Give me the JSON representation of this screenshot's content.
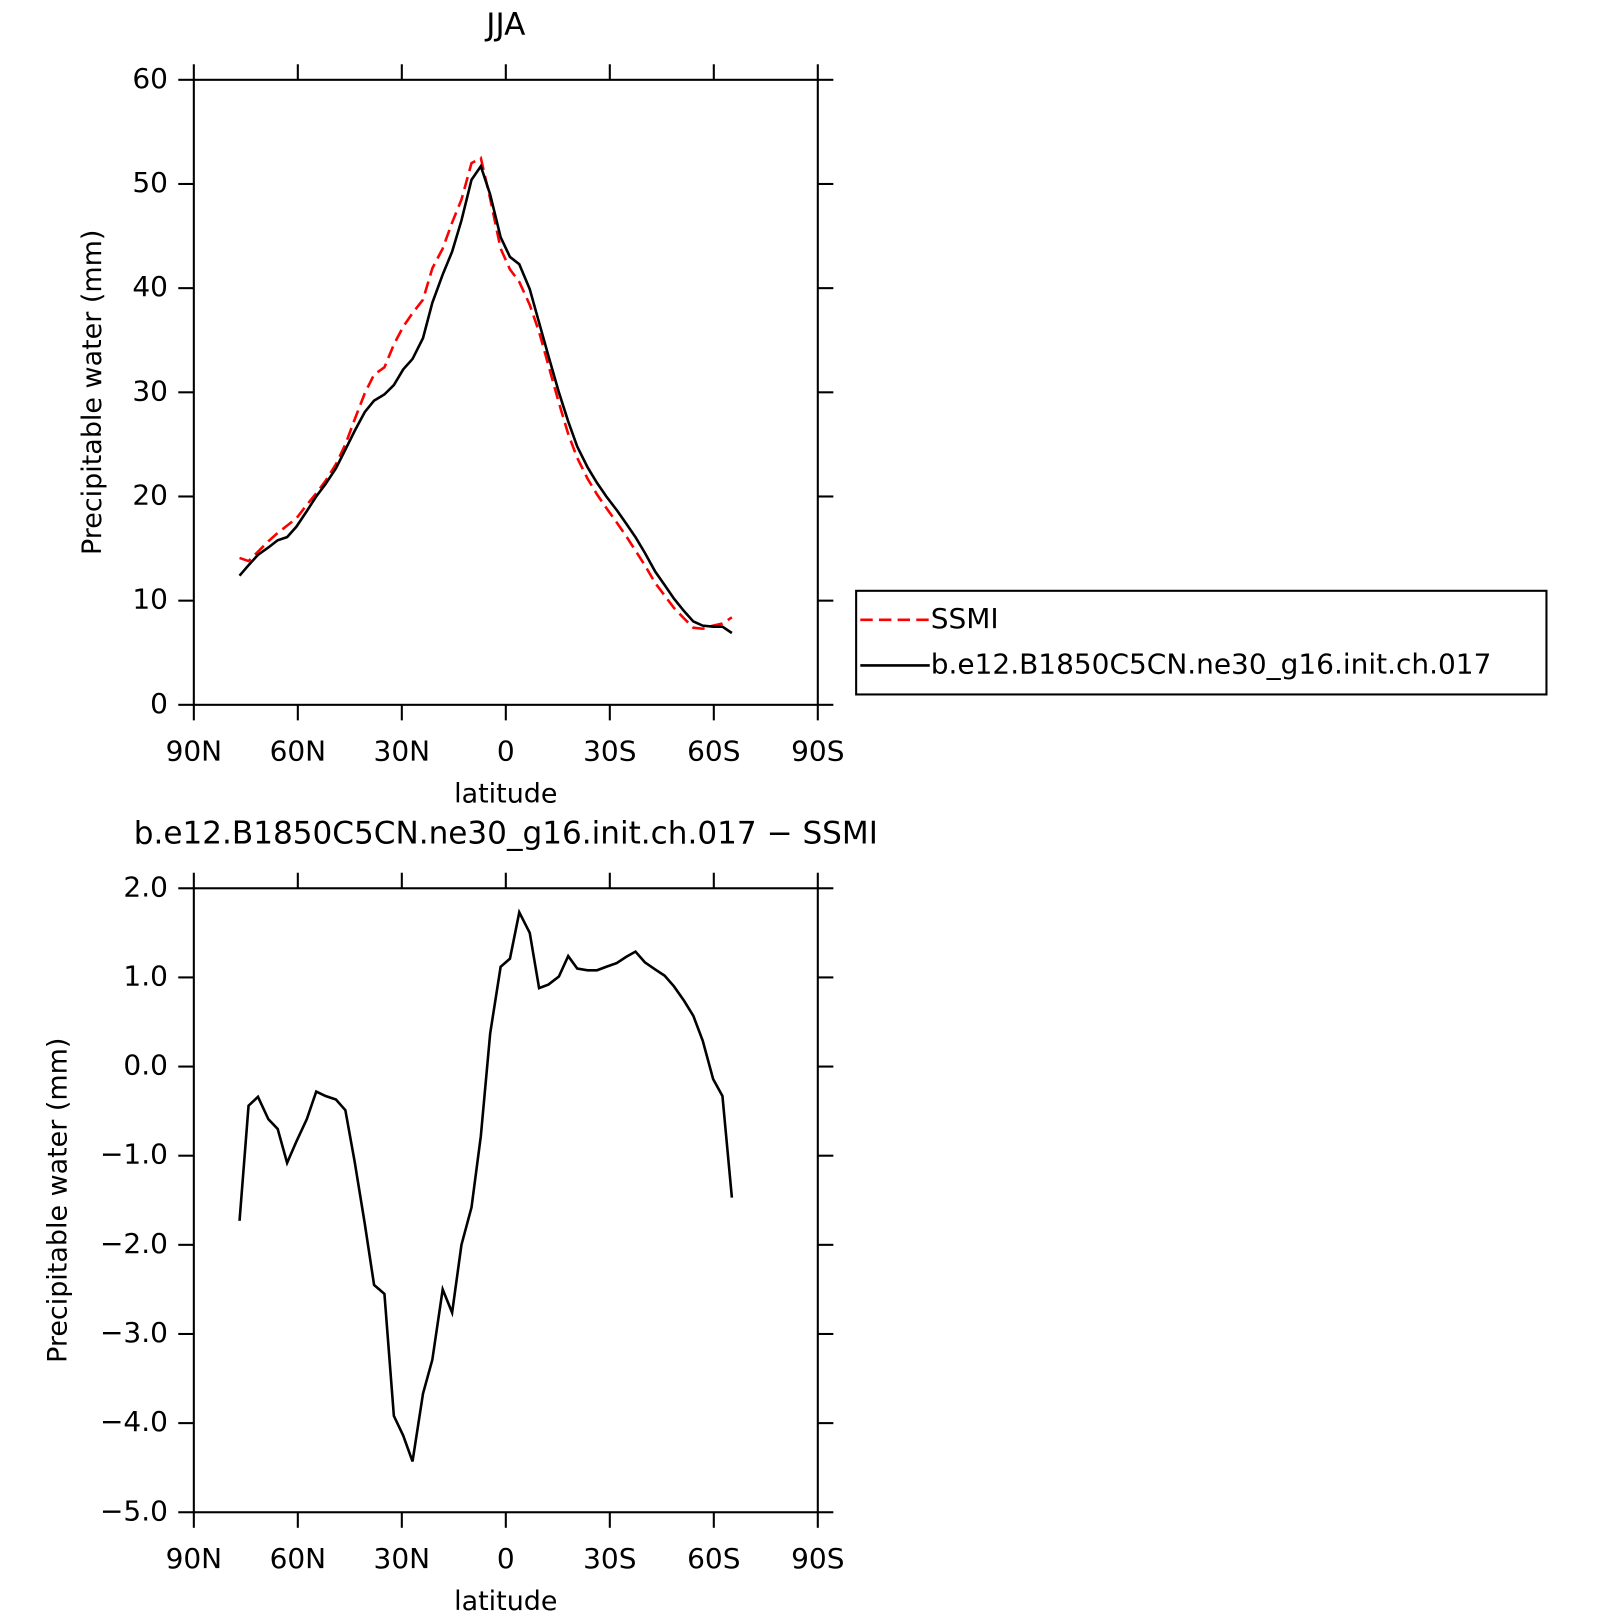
{
  "chart_data": [
    {
      "type": "line",
      "title": "JJA",
      "xlabel": "latitude",
      "ylabel": "Precipitable water (mm)",
      "x": [
        76.8,
        74.2,
        71.5,
        68.5,
        65.8,
        63.1,
        60.4,
        57.4,
        54.7,
        52.0,
        49.0,
        46.3,
        43.6,
        40.7,
        38.0,
        35.0,
        32.3,
        29.6,
        26.9,
        23.9,
        21.2,
        18.2,
        15.5,
        12.8,
        9.9,
        7.2,
        4.5,
        1.5,
        -1.2,
        -3.9,
        -6.9,
        -9.6,
        -12.3,
        -15.3,
        -18.0,
        -20.6,
        -23.6,
        -26.3,
        -29.0,
        -32.0,
        -34.7,
        -37.4,
        -40.1,
        -43.1,
        -45.8,
        -48.5,
        -51.4,
        -54.1,
        -56.8,
        -59.8,
        -62.5,
        -65.2
      ],
      "series": [
        {
          "name": "SSMI",
          "color": "#ff0000",
          "dashed": true,
          "values": [
            14.1,
            13.8,
            14.7,
            15.7,
            16.5,
            17.2,
            17.9,
            19.2,
            20.3,
            21.5,
            23.1,
            25.0,
            27.4,
            29.9,
            31.7,
            32.4,
            34.6,
            36.3,
            37.6,
            38.9,
            41.9,
            43.8,
            46.3,
            48.5,
            52.0,
            52.5,
            48.6,
            43.8,
            41.8,
            40.6,
            38.4,
            35.8,
            32.6,
            29.0,
            26.0,
            23.7,
            21.7,
            20.2,
            18.9,
            17.5,
            16.2,
            14.8,
            13.4,
            11.7,
            10.5,
            9.3,
            8.3,
            7.4,
            7.3,
            7.6,
            7.8,
            8.4
          ]
        },
        {
          "name": "b.e12.B1850C5CN.ne30_g16.init.ch.017",
          "color": "#000000",
          "dashed": false,
          "values": [
            12.4,
            13.4,
            14.4,
            15.1,
            15.8,
            16.1,
            17.1,
            18.6,
            20.0,
            21.2,
            22.7,
            24.5,
            26.3,
            28.1,
            29.2,
            29.8,
            30.7,
            32.2,
            33.2,
            35.2,
            38.6,
            41.3,
            43.5,
            46.5,
            50.4,
            51.7,
            49.0,
            44.9,
            43.0,
            42.3,
            39.9,
            36.7,
            33.5,
            30.0,
            27.2,
            24.8,
            22.8,
            21.3,
            20.0,
            18.7,
            17.4,
            16.1,
            14.6,
            12.8,
            11.5,
            10.2,
            9.0,
            8.0,
            7.6,
            7.5,
            7.5,
            6.9
          ]
        }
      ],
      "xlim": [
        90,
        -90
      ],
      "xticks": [
        {
          "value": 90,
          "label": "90N"
        },
        {
          "value": 60,
          "label": "60N"
        },
        {
          "value": 30,
          "label": "30N"
        },
        0,
        {
          "value": -30,
          "label": "30S"
        },
        {
          "value": -60,
          "label": "60S"
        },
        {
          "value": -90,
          "label": "90S"
        }
      ],
      "ylim": [
        0,
        60
      ],
      "yticks": [
        0,
        10,
        20,
        30,
        40,
        50,
        60
      ],
      "legend": "right"
    },
    {
      "type": "line",
      "title": "b.e12.B1850C5CN.ne30_g16.init.ch.017 − SSMI",
      "xlabel": "latitude",
      "ylabel": "Precipitable water (mm)",
      "x": [
        76.8,
        74.2,
        71.5,
        68.5,
        65.8,
        63.1,
        60.4,
        57.4,
        54.7,
        52.0,
        49.0,
        46.3,
        43.6,
        40.7,
        38.0,
        35.0,
        32.3,
        29.6,
        26.9,
        23.9,
        21.2,
        18.2,
        15.5,
        12.8,
        9.9,
        7.2,
        4.5,
        1.5,
        -1.2,
        -3.9,
        -6.9,
        -9.6,
        -12.3,
        -15.3,
        -18.0,
        -20.6,
        -23.6,
        -26.3,
        -29.0,
        -32.0,
        -34.7,
        -37.4,
        -40.1,
        -43.1,
        -45.8,
        -48.5,
        -51.4,
        -54.1,
        -56.8,
        -59.8,
        -62.5,
        -65.2
      ],
      "values": [
        -1.73,
        -0.44,
        -0.34,
        -0.59,
        -0.7,
        -1.08,
        -0.84,
        -0.59,
        -0.28,
        -0.33,
        -0.37,
        -0.49,
        -1.07,
        -1.76,
        -2.45,
        -2.55,
        -3.92,
        -4.14,
        -4.43,
        -3.67,
        -3.29,
        -2.5,
        -2.76,
        -2.0,
        -1.58,
        -0.78,
        0.37,
        1.12,
        1.21,
        1.73,
        1.5,
        0.88,
        0.92,
        1.01,
        1.24,
        1.1,
        1.08,
        1.08,
        1.12,
        1.16,
        1.23,
        1.29,
        1.17,
        1.09,
        1.02,
        0.9,
        0.74,
        0.57,
        0.29,
        -0.14,
        -0.33,
        -1.47
      ],
      "color": "#000000",
      "xlim": [
        90,
        -90
      ],
      "xticks": [
        {
          "value": 90,
          "label": "90N"
        },
        {
          "value": 60,
          "label": "60N"
        },
        {
          "value": 30,
          "label": "30N"
        },
        0,
        {
          "value": -30,
          "label": "30S"
        },
        {
          "value": -60,
          "label": "60S"
        },
        {
          "value": -90,
          "label": "90S"
        }
      ],
      "ylim": [
        -5,
        2
      ],
      "yticks": [
        {
          "value": -5,
          "label": "−5.0"
        },
        {
          "value": -4,
          "label": "−4.0"
        },
        {
          "value": -3,
          "label": "−3.0"
        },
        {
          "value": -2,
          "label": "−2.0"
        },
        {
          "value": -1,
          "label": "−1.0"
        },
        {
          "value": 0,
          "label": "0.0"
        },
        {
          "value": 1,
          "label": "1.0"
        },
        {
          "value": 2,
          "label": "2.0"
        }
      ]
    }
  ]
}
